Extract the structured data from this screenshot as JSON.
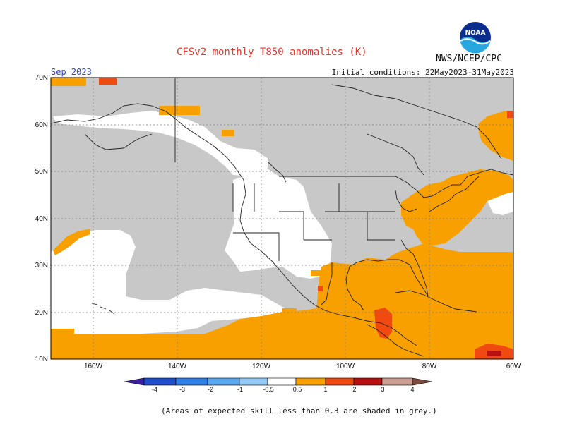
{
  "header": {
    "title": "CFSv2 monthly T850 anomalies (K)",
    "organization": "NWS/NCEP/CPC",
    "month_label": "Sep 2023",
    "initial_conditions": "Initial conditions: 22May2023-31May2023"
  },
  "logo": {
    "text": "NOAA",
    "icon": "noaa-logo-icon"
  },
  "map": {
    "lat_labels": [
      "70N",
      "60N",
      "50N",
      "40N",
      "30N",
      "20N",
      "10N"
    ],
    "lon_labels": [
      "160W",
      "140W",
      "120W",
      "100W",
      "80W",
      "60W"
    ],
    "lat_range": [
      10,
      70
    ],
    "lon_range": [
      -170,
      -60
    ],
    "grid": true,
    "low_skill_shade": "grey"
  },
  "colorbar": {
    "tick_labels": [
      "-4",
      "-3",
      "-2",
      "-1",
      "-0.5",
      "0.5",
      "1",
      "2",
      "3",
      "4"
    ],
    "colors": [
      "#3a1fa0",
      "#1f4fcf",
      "#2f7fe8",
      "#58a8f2",
      "#94caf8",
      "#ffffff",
      "#f7a000",
      "#f04a10",
      "#b81010",
      "#cc9e94",
      "#7a4a3a"
    ]
  },
  "footnote": "(Areas of expected skill less than 0.3 are shaded in grey.)"
}
